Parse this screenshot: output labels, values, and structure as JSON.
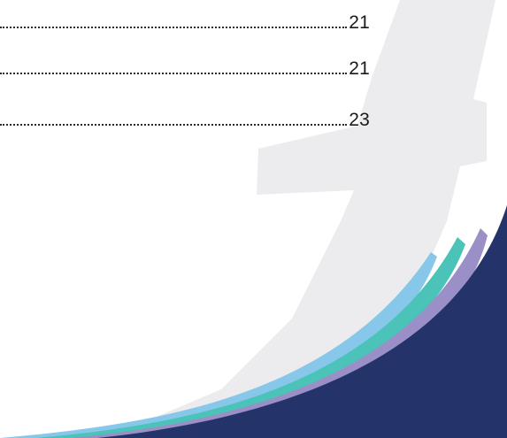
{
  "toc": {
    "entries": [
      {
        "page": "21"
      },
      {
        "page": "21"
      },
      {
        "page": "23"
      }
    ]
  },
  "colors": {
    "watermark": "#ececee",
    "navy": "#24346b",
    "lavender": "#9a8fc6",
    "teal": "#4cc3b8",
    "sky": "#86c7ea"
  },
  "decor_icons": [
    "cross-watermark",
    "wave-swoosh"
  ]
}
